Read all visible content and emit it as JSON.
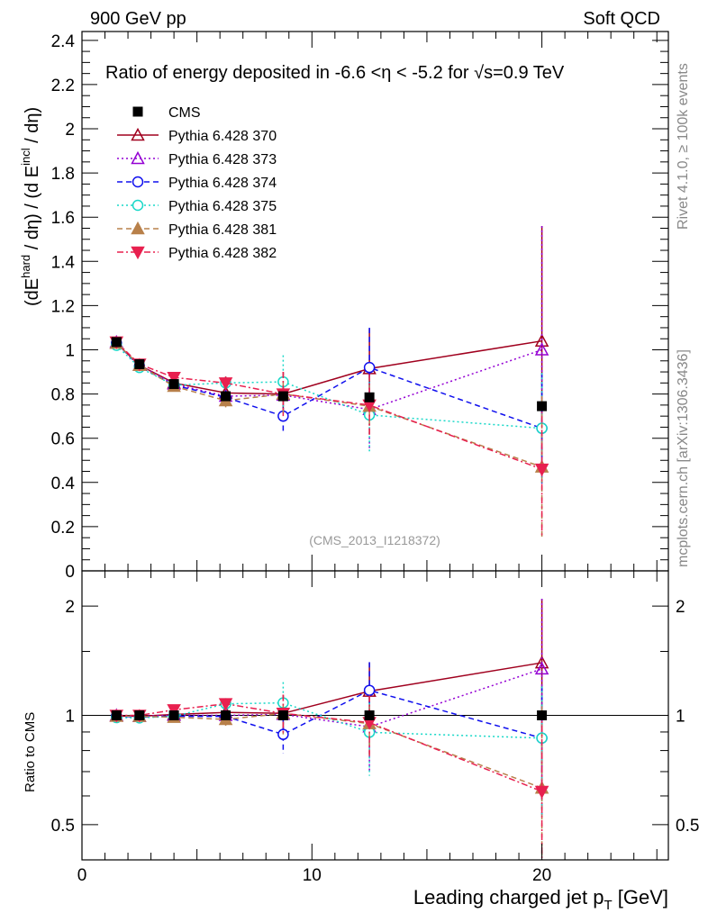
{
  "header": {
    "left": "900 GeV pp",
    "right": "Soft QCD"
  },
  "side_text": {
    "top": "Rivet 4.1.0, ≥ 100k events",
    "bottom": "mcplots.cern.ch [arXiv:1306.3436]"
  },
  "chart_data": {
    "type": "scatter",
    "title": "Ratio of energy deposited in -6.6 <η < -5.2 for √s=0.9 TeV",
    "watermark": "(CMS_2013_I1218372)",
    "ylabel": "(dE^hard / dη) / (d E^incl / dη)",
    "ylabel_parts": {
      "a": "(dE",
      "sup1": "hard",
      "b": " / dη) / (d E",
      "sup2": "incl",
      "c": " / dη)"
    },
    "xlabel": "Leading charged jet p",
    "xlabel_sub": "T",
    "xlabel_unit": " [GeV]",
    "ratio_ylabel": "Ratio to CMS",
    "xlim": [
      0,
      25.5
    ],
    "ylim": [
      0,
      2.44
    ],
    "ratio_ylim": [
      0.4,
      2.5
    ],
    "ratio_scale": "log",
    "x_ticks": [
      "0",
      "10",
      "20"
    ],
    "y_ticks": [
      "0",
      "0.2",
      "0.4",
      "0.6",
      "0.8",
      "1",
      "1.2",
      "1.4",
      "1.6",
      "1.8",
      "2",
      "2.2",
      "2.4"
    ],
    "ratio_ticks": [
      "0.5",
      "1",
      "2"
    ],
    "legend_position": "top-left",
    "x": [
      1.5,
      2.5,
      4.0,
      6.25,
      8.75,
      12.5,
      20.0
    ],
    "series": [
      {
        "name": "CMS",
        "color": "#000000",
        "marker": "square-filled",
        "line": "none",
        "values": [
          1.035,
          0.935,
          0.845,
          0.79,
          0.79,
          0.785,
          0.745
        ],
        "errors": [
          0.01,
          0.01,
          0.01,
          0.02,
          0.02,
          0.02,
          0.02
        ]
      },
      {
        "name": "Pythia 6.428 370",
        "color": "#a0001e",
        "marker": "triangle-up-open",
        "line": "solid",
        "values": [
          1.03,
          0.93,
          0.85,
          0.805,
          0.8,
          0.915,
          1.04
        ],
        "errors": [
          0.01,
          0.01,
          0.02,
          0.03,
          0.1,
          0.18,
          0.52
        ]
      },
      {
        "name": "Pythia 6.428 373",
        "color": "#9400d3",
        "marker": "triangle-up-open",
        "line": "dotted",
        "values": [
          1.035,
          0.93,
          0.845,
          0.79,
          0.795,
          0.73,
          1.0
        ],
        "errors": [
          0.01,
          0.01,
          0.02,
          0.03,
          0.1,
          0.18,
          0.56
        ]
      },
      {
        "name": "Pythia 6.428 374",
        "color": "#1010ee",
        "marker": "circle-open",
        "line": "dashed",
        "values": [
          1.03,
          0.925,
          0.84,
          0.785,
          0.7,
          0.92,
          0.645
        ],
        "errors": [
          0.01,
          0.01,
          0.02,
          0.03,
          0.08,
          0.18,
          0.25
        ]
      },
      {
        "name": "Pythia 6.428 375",
        "color": "#18d8c8",
        "marker": "circle-open",
        "line": "dotted",
        "values": [
          1.02,
          0.92,
          0.84,
          0.85,
          0.855,
          0.705,
          0.645
        ],
        "errors": [
          0.01,
          0.01,
          0.02,
          0.03,
          0.12,
          0.17,
          0.25
        ]
      },
      {
        "name": "Pythia 6.428 381",
        "color": "#b8804a",
        "marker": "triangle-up-filled",
        "line": "dashed",
        "values": [
          1.03,
          0.93,
          0.835,
          0.77,
          0.8,
          0.745,
          0.47
        ],
        "errors": [
          0.01,
          0.01,
          0.02,
          0.03,
          0.1,
          0.14,
          0.32
        ]
      },
      {
        "name": "Pythia 6.428 382",
        "color": "#e8204f",
        "marker": "triangle-down-filled",
        "line": "dashdot",
        "values": [
          1.035,
          0.935,
          0.875,
          0.85,
          0.8,
          0.75,
          0.46
        ],
        "errors": [
          0.01,
          0.01,
          0.02,
          0.03,
          0.1,
          0.14,
          0.3
        ]
      }
    ]
  }
}
